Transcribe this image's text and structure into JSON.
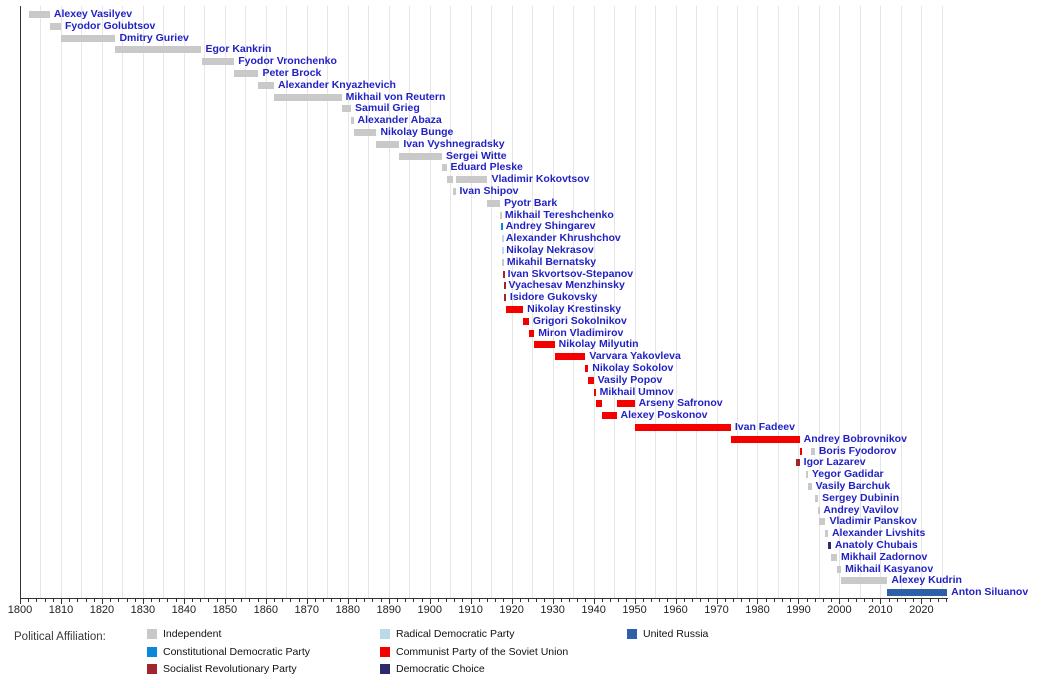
{
  "chart_data": {
    "type": "timeline",
    "description": "Gantt-style timeline of finance ministers colored by political affiliation",
    "x_axis": {
      "min": 1800,
      "max": 2026.5,
      "tick_labels": [
        1800,
        1810,
        1820,
        1830,
        1840,
        1850,
        1860,
        1870,
        1880,
        1890,
        1900,
        1910,
        1920,
        1930,
        1940,
        1950,
        1960,
        1970,
        1980,
        1990,
        2000,
        2010,
        2020
      ],
      "minor_tick_step": 2,
      "gridline_step": 5,
      "grid": true
    },
    "legend_title": "Political Affiliation:",
    "affiliations": {
      "independent": {
        "label": "Independent",
        "color": "#c9c9c9"
      },
      "constitutional_democratic": {
        "label": "Constitutional Democratic Party",
        "color": "#0b87d9"
      },
      "socialist_revolutionary": {
        "label": "Socialist Revolutionary Party",
        "color": "#a1252c"
      },
      "radical_democratic": {
        "label": "Radical Democratic Party",
        "color": "#b9dbe9"
      },
      "communist": {
        "label": "Communist Party of the Soviet Union",
        "color": "#f40000"
      },
      "democratic_choice": {
        "label": "Democratic Choice",
        "color": "#2b2a6d"
      },
      "united_russia": {
        "label": "United Russia",
        "color": "#2f5fa9"
      }
    },
    "legend_columns": [
      [
        "independent",
        "constitutional_democratic",
        "socialist_revolutionary"
      ],
      [
        "radical_democratic",
        "communist",
        "democratic_choice"
      ],
      [
        "united_russia"
      ]
    ],
    "people": [
      {
        "name": "Alexey Vasilyev",
        "segments": [
          {
            "start": 1802.3,
            "end": 1807.3,
            "affiliation": "independent"
          }
        ]
      },
      {
        "name": "Fyodor Golubtsov",
        "segments": [
          {
            "start": 1807.3,
            "end": 1810.0,
            "affiliation": "independent"
          }
        ]
      },
      {
        "name": "Dmitry Guriev",
        "segments": [
          {
            "start": 1810.0,
            "end": 1823.3,
            "affiliation": "independent"
          }
        ]
      },
      {
        "name": "Egor Kankrin",
        "segments": [
          {
            "start": 1823.3,
            "end": 1844.3,
            "affiliation": "independent"
          }
        ]
      },
      {
        "name": "Fyodor Vronchenko",
        "segments": [
          {
            "start": 1844.3,
            "end": 1852.3,
            "affiliation": "independent"
          }
        ]
      },
      {
        "name": "Peter Brock",
        "segments": [
          {
            "start": 1852.3,
            "end": 1858.2,
            "affiliation": "independent"
          }
        ]
      },
      {
        "name": "Alexander Knyazhevich",
        "segments": [
          {
            "start": 1858.2,
            "end": 1862.0,
            "affiliation": "independent"
          }
        ]
      },
      {
        "name": "Mikhail von Reutern",
        "segments": [
          {
            "start": 1862.0,
            "end": 1878.5,
            "affiliation": "independent"
          }
        ]
      },
      {
        "name": "Samuil Grieg",
        "segments": [
          {
            "start": 1878.5,
            "end": 1880.8,
            "affiliation": "independent"
          }
        ]
      },
      {
        "name": "Alexander Abaza",
        "segments": [
          {
            "start": 1880.8,
            "end": 1881.4,
            "affiliation": "independent"
          }
        ]
      },
      {
        "name": "Nikolay Bunge",
        "segments": [
          {
            "start": 1881.4,
            "end": 1887.0,
            "affiliation": "independent"
          }
        ]
      },
      {
        "name": "Ivan Vyshnegradsky",
        "segments": [
          {
            "start": 1887.0,
            "end": 1892.6,
            "affiliation": "independent"
          }
        ]
      },
      {
        "name": "Sergei Witte",
        "segments": [
          {
            "start": 1892.6,
            "end": 1903.0,
            "affiliation": "independent"
          }
        ]
      },
      {
        "name": "Eduard Pleske",
        "segments": [
          {
            "start": 1903.0,
            "end": 1904.1,
            "affiliation": "independent"
          }
        ]
      },
      {
        "name": "Vladimir Kokovtsov",
        "segments": [
          {
            "start": 1904.1,
            "end": 1905.8,
            "affiliation": "independent"
          },
          {
            "start": 1906.3,
            "end": 1914.1,
            "affiliation": "independent"
          }
        ]
      },
      {
        "name": "Ivan Shipov",
        "segments": [
          {
            "start": 1905.8,
            "end": 1906.3,
            "affiliation": "independent"
          }
        ]
      },
      {
        "name": "Pyotr Bark",
        "segments": [
          {
            "start": 1914.1,
            "end": 1917.2,
            "affiliation": "independent"
          }
        ]
      },
      {
        "name": "Mikhail Tereshchenko",
        "segments": [
          {
            "start": 1917.17,
            "end": 1917.37,
            "affiliation": "independent"
          }
        ]
      },
      {
        "name": "Andrey Shingarev",
        "segments": [
          {
            "start": 1917.37,
            "end": 1917.54,
            "affiliation": "constitutional_democratic"
          }
        ]
      },
      {
        "name": "Alexander Khrushchov",
        "segments": [
          {
            "start": 1917.54,
            "end": 1917.6,
            "affiliation": "radical_democratic"
          }
        ]
      },
      {
        "name": "Nikolay Nekrasov",
        "segments": [
          {
            "start": 1917.6,
            "end": 1917.7,
            "affiliation": "radical_democratic"
          }
        ]
      },
      {
        "name": "Mikahil Bernatsky",
        "segments": [
          {
            "start": 1917.7,
            "end": 1917.85,
            "affiliation": "independent"
          }
        ]
      },
      {
        "name": "Ivan Skvortsov-Stepanov",
        "segments": [
          {
            "start": 1917.85,
            "end": 1918.05,
            "affiliation": "socialist_revolutionary"
          }
        ]
      },
      {
        "name": "Vyachesav Menzhinsky",
        "segments": [
          {
            "start": 1918.05,
            "end": 1918.25,
            "affiliation": "socialist_revolutionary"
          }
        ]
      },
      {
        "name": "Isidore Gukovsky",
        "segments": [
          {
            "start": 1918.25,
            "end": 1918.6,
            "affiliation": "socialist_revolutionary"
          }
        ]
      },
      {
        "name": "Nikolay Krestinsky",
        "segments": [
          {
            "start": 1918.6,
            "end": 1922.8,
            "affiliation": "communist"
          }
        ]
      },
      {
        "name": "Grigori Sokolnikov",
        "segments": [
          {
            "start": 1922.8,
            "end": 1924.2,
            "affiliation": "communist"
          }
        ]
      },
      {
        "name": "Miron Vladimirov",
        "segments": [
          {
            "start": 1924.2,
            "end": 1925.5,
            "affiliation": "communist"
          }
        ]
      },
      {
        "name": "Nikolay Milyutin",
        "segments": [
          {
            "start": 1925.5,
            "end": 1930.5,
            "affiliation": "communist"
          }
        ]
      },
      {
        "name": "Varvara Yakovleva",
        "segments": [
          {
            "start": 1930.5,
            "end": 1938.0,
            "affiliation": "communist"
          }
        ]
      },
      {
        "name": "Nikolay Sokolov",
        "segments": [
          {
            "start": 1938.0,
            "end": 1938.7,
            "affiliation": "communist"
          }
        ]
      },
      {
        "name": "Vasily Popov",
        "segments": [
          {
            "start": 1938.7,
            "end": 1940.0,
            "affiliation": "communist"
          }
        ]
      },
      {
        "name": "Mikhail Umnov",
        "segments": [
          {
            "start": 1940.0,
            "end": 1940.5,
            "affiliation": "communist"
          }
        ]
      },
      {
        "name": "Arseny Safronov",
        "segments": [
          {
            "start": 1940.5,
            "end": 1942.0,
            "affiliation": "communist"
          },
          {
            "start": 1945.6,
            "end": 1950.0,
            "affiliation": "communist"
          }
        ]
      },
      {
        "name": "Alexey Poskonov",
        "segments": [
          {
            "start": 1942.0,
            "end": 1945.6,
            "affiliation": "communist"
          }
        ]
      },
      {
        "name": "Ivan Fadeev",
        "segments": [
          {
            "start": 1950.0,
            "end": 1973.5,
            "affiliation": "communist"
          }
        ]
      },
      {
        "name": "Andrey Bobrovnikov",
        "segments": [
          {
            "start": 1973.5,
            "end": 1990.3,
            "affiliation": "communist"
          }
        ]
      },
      {
        "name": "Boris Fyodorov",
        "segments": [
          {
            "start": 1990.3,
            "end": 1990.9,
            "affiliation": "communist"
          },
          {
            "start": 1993.0,
            "end": 1994.0,
            "affiliation": "independent"
          }
        ]
      },
      {
        "name": "Igor Lazarev",
        "segments": [
          {
            "start": 1989.4,
            "end": 1990.3,
            "affiliation": "socialist_revolutionary"
          }
        ]
      },
      {
        "name": "Yegor Gadidar",
        "segments": [
          {
            "start": 1991.8,
            "end": 1992.3,
            "affiliation": "independent"
          }
        ]
      },
      {
        "name": "Vasily Barchuk",
        "segments": [
          {
            "start": 1992.3,
            "end": 1993.2,
            "affiliation": "independent"
          }
        ]
      },
      {
        "name": "Sergey Dubinin",
        "segments": [
          {
            "start": 1994.0,
            "end": 1994.8,
            "affiliation": "independent"
          }
        ]
      },
      {
        "name": "Andrey Vavilov",
        "segments": [
          {
            "start": 1994.8,
            "end": 1995.1,
            "affiliation": "independent"
          }
        ]
      },
      {
        "name": "Vladimir Panskov",
        "segments": [
          {
            "start": 1994.9,
            "end": 1996.6,
            "affiliation": "independent"
          }
        ]
      },
      {
        "name": "Alexander Livshits",
        "segments": [
          {
            "start": 1996.6,
            "end": 1997.2,
            "affiliation": "independent"
          }
        ]
      },
      {
        "name": "Anatoly Chubais",
        "segments": [
          {
            "start": 1997.2,
            "end": 1997.9,
            "affiliation": "democratic_choice"
          }
        ]
      },
      {
        "name": "Mikhail Zadornov",
        "segments": [
          {
            "start": 1997.9,
            "end": 1999.4,
            "affiliation": "independent"
          }
        ]
      },
      {
        "name": "Mikhail Kasyanov",
        "segments": [
          {
            "start": 1999.4,
            "end": 2000.4,
            "affiliation": "independent"
          }
        ]
      },
      {
        "name": "Alexey Kudrin",
        "segments": [
          {
            "start": 2000.4,
            "end": 2011.7,
            "affiliation": "independent"
          }
        ]
      },
      {
        "name": "Anton Siluanov",
        "segments": [
          {
            "start": 2011.7,
            "end": 2026.3,
            "affiliation": "united_russia"
          }
        ]
      }
    ]
  }
}
